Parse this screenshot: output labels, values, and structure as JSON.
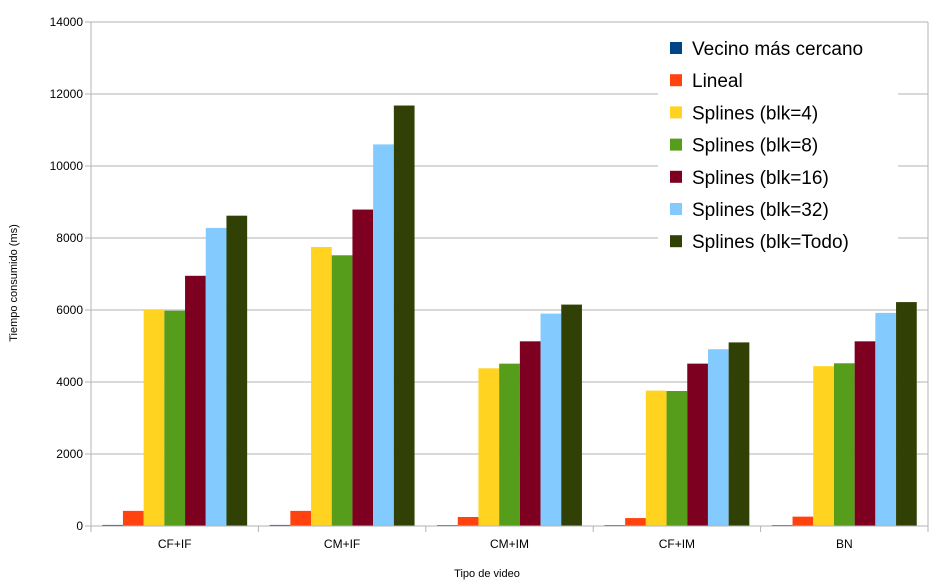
{
  "chart_data": {
    "type": "bar",
    "title": "",
    "xlabel": "Tipo de video",
    "ylabel": "Tiempo consumido (ms)",
    "ylim": [
      0,
      14000
    ],
    "yticks": [
      "0",
      "2000",
      "4000",
      "6000",
      "8000",
      "10000",
      "12000",
      "14000"
    ],
    "grid": true,
    "legend_position": "top-right",
    "categories": [
      "CF+IF",
      "CM+IF",
      "CM+IM",
      "CF+IM",
      "BN"
    ],
    "series": [
      {
        "name": "Vecino más cercano",
        "color": "#004586",
        "values": [
          30,
          30,
          25,
          25,
          25
        ]
      },
      {
        "name": "Lineal",
        "color": "#ff420e",
        "values": [
          420,
          420,
          250,
          220,
          260
        ]
      },
      {
        "name": "Splines (blk=4)",
        "color": "#ffd320",
        "values": [
          6020,
          7750,
          4380,
          3760,
          4440
        ]
      },
      {
        "name": "Splines (blk=8)",
        "color": "#579d1c",
        "values": [
          5980,
          7520,
          4510,
          3750,
          4520
        ]
      },
      {
        "name": "Splines (blk=16)",
        "color": "#7e0021",
        "values": [
          6950,
          8790,
          5130,
          4510,
          5130
        ]
      },
      {
        "name": "Splines (blk=32)",
        "color": "#83caff",
        "values": [
          8280,
          10600,
          5900,
          4910,
          5920
        ]
      },
      {
        "name": "Splines (blk=Todo)",
        "color": "#314004",
        "values": [
          8620,
          11680,
          6150,
          5100,
          6220
        ]
      }
    ]
  }
}
